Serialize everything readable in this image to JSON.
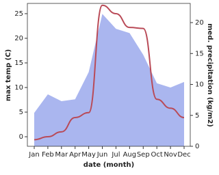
{
  "chart_data": {
    "type": "line",
    "xlabel": "date (month)",
    "ylabel": "max temp (C)",
    "y2label": "med. precipitation (kg/m2)",
    "categories": [
      "Jan",
      "Feb",
      "Mar",
      "Apr",
      "May",
      "Jun",
      "Jul",
      "Aug",
      "Sep",
      "Oct",
      "Nov",
      "Dec"
    ],
    "series": [
      {
        "type": "area",
        "axis": "y2",
        "color": "#aab6ef",
        "values": [
          5.4,
          8.4,
          7.3,
          7.6,
          12,
          21.4,
          19,
          18.3,
          14.8,
          10.2,
          9.5,
          10.4
        ]
      },
      {
        "type": "line",
        "color": "#b94a57",
        "values": [
          -0.6,
          0,
          1,
          3.9,
          4.9,
          26.7,
          25,
          22.2,
          22,
          7.6,
          5.8,
          3.9
        ]
      }
    ],
    "ylim": [
      -1.94,
      27.08
    ],
    "yticks": [
      0,
      5,
      10,
      15,
      20,
      25
    ],
    "y2lim": [
      0,
      23.1
    ],
    "y2ticks": [
      0,
      5,
      10,
      15,
      20
    ]
  }
}
